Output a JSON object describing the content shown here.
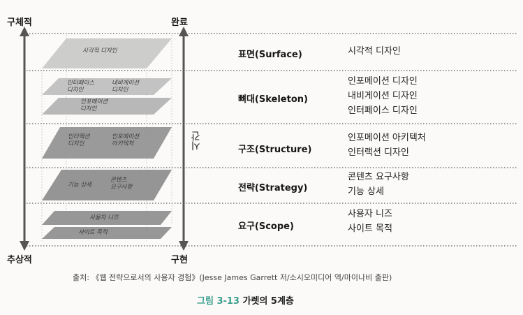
{
  "corners": {
    "top_left": "구체적",
    "top_right": "완료",
    "bottom_left": "추상적",
    "bottom_right": "구현"
  },
  "time_axis": "시간",
  "planes": {
    "surface": [
      "시각적 디자인"
    ],
    "skeleton_upper_left": "인터페이스\n디자인",
    "skeleton_upper_right": "내비게이션\n디자인",
    "skeleton_lower": "인포메이션\n디자인",
    "structure_left": "인터랙션\n디자인",
    "structure_right": "인포메이션\n아키텍처",
    "strategy_left": "기능 상세",
    "strategy_right": "콘텐츠\n요구사항",
    "scope_upper": "사용자 니즈",
    "scope_lower": "사이트 목적"
  },
  "layers": [
    {
      "name": "표면(Surface)",
      "items": [
        "시각적 디자인"
      ]
    },
    {
      "name": "뼈대(Skeleton)",
      "items": [
        "인포메이션 디자인",
        "내비게이션 디자인",
        "인터페이스 디자인"
      ]
    },
    {
      "name": "구조(Structure)",
      "items": [
        "인포메이션 아키텍처",
        "인터랙션 디자인"
      ]
    },
    {
      "name": "전략(Strategy)",
      "items": [
        "콘텐츠 요구사항",
        "기능 상세"
      ]
    },
    {
      "name": "요구(Scope)",
      "items": [
        "사용자 니즈",
        "사이트 목적"
      ]
    }
  ],
  "source": "출처: 《웹 전략으로서의 사용자 경험》(Jesse James Garrett 저/소시오미디어 역/마이나비 출판)",
  "caption": {
    "number": "그림 3-13",
    "title": "가렛의 5계층"
  }
}
